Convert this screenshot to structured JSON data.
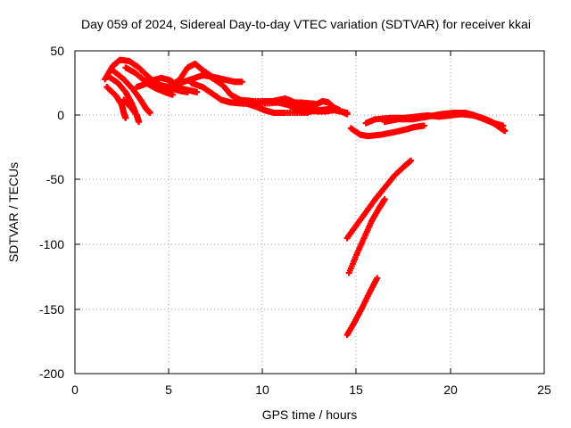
{
  "chart_data": {
    "type": "scatter",
    "title": "Day 059 of 2024, Sidereal Day-to-day VTEC variation (SDTVAR) for receiver kkai",
    "xlabel": "GPS time / hours",
    "ylabel": "SDTVAR / TECUs",
    "xlim": [
      0,
      25
    ],
    "ylim": [
      -200,
      50
    ],
    "xticks": [
      "0",
      "5",
      "10",
      "15",
      "20",
      "25"
    ],
    "yticks": [
      "50",
      "0",
      "-50",
      "-100",
      "-150",
      "-200"
    ],
    "grid": true,
    "series_color": "#ff0000",
    "series": [
      {
        "values": [
          [
            1.6,
            28
          ],
          [
            2.0,
            38
          ],
          [
            2.4,
            43
          ],
          [
            2.9,
            42
          ],
          [
            3.4,
            37
          ],
          [
            3.9,
            30
          ],
          [
            4.4,
            24
          ],
          [
            5.0,
            22
          ],
          [
            5.6,
            28
          ],
          [
            6.0,
            37
          ],
          [
            6.4,
            40
          ],
          [
            6.8,
            35
          ],
          [
            7.3,
            30
          ]
        ]
      },
      {
        "values": [
          [
            1.7,
            22
          ],
          [
            2.2,
            15
          ],
          [
            2.5,
            8
          ],
          [
            2.6,
            2
          ],
          [
            2.7,
            -2
          ]
        ]
      },
      {
        "values": [
          [
            1.8,
            30
          ],
          [
            2.3,
            25
          ],
          [
            2.7,
            18
          ],
          [
            3.0,
            10
          ],
          [
            3.2,
            3
          ]
        ]
      },
      {
        "values": [
          [
            2.0,
            35
          ],
          [
            2.6,
            28
          ],
          [
            3.1,
            20
          ],
          [
            3.5,
            12
          ],
          [
            3.8,
            5
          ],
          [
            4.0,
            2
          ]
        ]
      },
      {
        "values": [
          [
            2.6,
            12
          ],
          [
            3.0,
            6
          ],
          [
            3.3,
            0
          ],
          [
            3.4,
            -5
          ]
        ]
      },
      {
        "values": [
          [
            2.7,
            37
          ],
          [
            3.2,
            33
          ],
          [
            3.7,
            27
          ],
          [
            4.2,
            25
          ],
          [
            4.6,
            22
          ],
          [
            5.1,
            21
          ],
          [
            5.6,
            19
          ],
          [
            6.0,
            18
          ]
        ]
      },
      {
        "values": [
          [
            3.3,
            22
          ],
          [
            3.7,
            24
          ],
          [
            4.1,
            27
          ],
          [
            4.6,
            29
          ],
          [
            5.1,
            27
          ],
          [
            5.6,
            21
          ],
          [
            6.2,
            19
          ],
          [
            6.5,
            18
          ]
        ]
      },
      {
        "values": [
          [
            3.8,
            25
          ],
          [
            4.3,
            21
          ],
          [
            4.8,
            18
          ],
          [
            5.2,
            16
          ]
        ]
      },
      {
        "values": [
          [
            4.5,
            20
          ],
          [
            5.1,
            23
          ],
          [
            5.6,
            25
          ],
          [
            6.2,
            28
          ],
          [
            6.8,
            31
          ],
          [
            7.3,
            30
          ],
          [
            7.9,
            28
          ],
          [
            8.5,
            26
          ],
          [
            8.9,
            26
          ]
        ]
      },
      {
        "values": [
          [
            6.2,
            25
          ],
          [
            6.8,
            22
          ],
          [
            7.3,
            17
          ],
          [
            7.8,
            12
          ],
          [
            8.3,
            10
          ],
          [
            9.0,
            9
          ],
          [
            10.0,
            9
          ],
          [
            11.0,
            10
          ],
          [
            12.0,
            10
          ],
          [
            12.8,
            9
          ]
        ]
      },
      {
        "values": [
          [
            7.2,
            30
          ],
          [
            7.9,
            23
          ],
          [
            8.3,
            16
          ],
          [
            8.8,
            12
          ],
          [
            9.5,
            11
          ],
          [
            10.5,
            11
          ],
          [
            11.2,
            13
          ],
          [
            11.7,
            10
          ],
          [
            12.3,
            8
          ]
        ]
      },
      {
        "values": [
          [
            8.3,
            10
          ],
          [
            9.2,
            10
          ],
          [
            10.3,
            11
          ],
          [
            10.8,
            10
          ],
          [
            11.4,
            8
          ],
          [
            11.8,
            4
          ],
          [
            12.4,
            2
          ]
        ]
      },
      {
        "values": [
          [
            9.2,
            9
          ],
          [
            9.6,
            7
          ],
          [
            10.1,
            4
          ],
          [
            10.6,
            2
          ],
          [
            11.2,
            2
          ],
          [
            12.2,
            2
          ],
          [
            13.0,
            4
          ],
          [
            13.6,
            5
          ],
          [
            14.2,
            3
          ],
          [
            14.5,
            1
          ]
        ]
      },
      {
        "values": [
          [
            11.4,
            12
          ],
          [
            11.9,
            8
          ],
          [
            12.4,
            5
          ],
          [
            12.9,
            3
          ],
          [
            13.3,
            3
          ],
          [
            13.8,
            4
          ],
          [
            14.5,
            2
          ]
        ]
      },
      {
        "values": [
          [
            12.2,
            6
          ],
          [
            12.8,
            8
          ],
          [
            13.2,
            11
          ],
          [
            13.5,
            10
          ],
          [
            13.8,
            6
          ],
          [
            14.1,
            4
          ]
        ]
      },
      {
        "values": [
          [
            14.7,
            -10
          ],
          [
            15.2,
            -15
          ],
          [
            15.6,
            -16
          ],
          [
            16.3,
            -15
          ],
          [
            17.0,
            -13
          ],
          [
            17.6,
            -11
          ],
          [
            18.1,
            -9
          ],
          [
            18.6,
            -8
          ]
        ]
      },
      {
        "values": [
          [
            15.5,
            -6
          ],
          [
            16.0,
            -3
          ],
          [
            16.8,
            -2
          ],
          [
            17.5,
            -2
          ],
          [
            18.2,
            -1
          ],
          [
            18.8,
            0
          ],
          [
            19.4,
            -1
          ],
          [
            20.0,
            0
          ],
          [
            20.6,
            1
          ],
          [
            21.2,
            0
          ],
          [
            21.7,
            -2
          ],
          [
            22.2,
            -5
          ],
          [
            22.6,
            -9
          ],
          [
            22.9,
            -12
          ]
        ]
      },
      {
        "values": [
          [
            16.5,
            -5
          ],
          [
            17.2,
            -3
          ],
          [
            18.0,
            -3
          ],
          [
            18.8,
            -1
          ],
          [
            19.5,
            1
          ],
          [
            20.2,
            2
          ],
          [
            20.8,
            2
          ],
          [
            21.3,
            0
          ],
          [
            21.8,
            -3
          ],
          [
            22.3,
            -6
          ],
          [
            22.8,
            -8
          ]
        ]
      },
      {
        "values": [
          [
            14.5,
            -95
          ],
          [
            15.0,
            -85
          ],
          [
            15.5,
            -75
          ],
          [
            16.0,
            -65
          ],
          [
            16.5,
            -56
          ],
          [
            17.0,
            -47
          ],
          [
            17.5,
            -40
          ],
          [
            17.9,
            -35
          ]
        ]
      },
      {
        "values": [
          [
            14.6,
            -122
          ],
          [
            15.0,
            -108
          ],
          [
            15.4,
            -95
          ],
          [
            15.8,
            -82
          ],
          [
            16.2,
            -72
          ],
          [
            16.5,
            -65
          ]
        ]
      },
      {
        "values": [
          [
            14.5,
            -170
          ],
          [
            14.9,
            -160
          ],
          [
            15.3,
            -149
          ],
          [
            15.7,
            -137
          ],
          [
            16.1,
            -126
          ]
        ]
      }
    ]
  }
}
